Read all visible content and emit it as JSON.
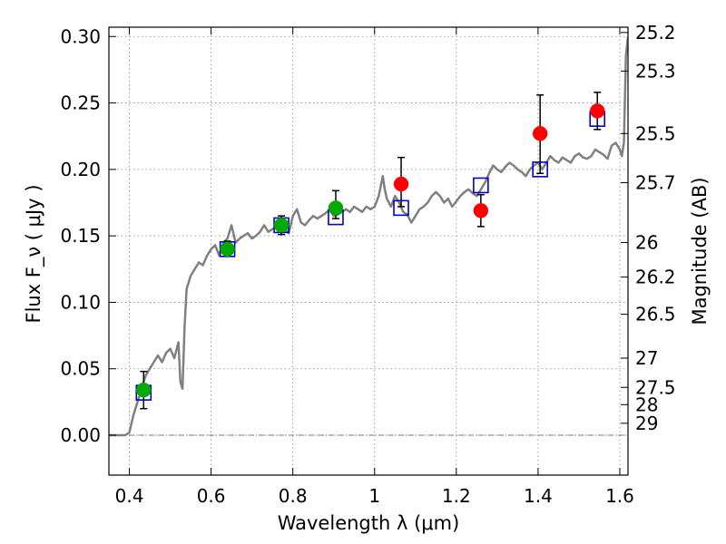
{
  "chart_data": {
    "type": "scatter",
    "xlabel": "Wavelength  λ (μm)",
    "ylabel": "Flux  F_ν  ( μJy )",
    "ylabel_right": "Magnitude (AB)",
    "xlim": [
      0.35,
      1.62
    ],
    "ylim": [
      -0.03,
      0.307
    ],
    "x_ticks": [
      0.4,
      0.6,
      0.8,
      1.0,
      1.2,
      1.4,
      1.6
    ],
    "x_tick_labels": [
      "0.4",
      "0.6",
      "0.8",
      "1",
      "1.2",
      "1.4",
      "1.6"
    ],
    "y_ticks": [
      0.0,
      0.05,
      0.1,
      0.15,
      0.2,
      0.25,
      0.3
    ],
    "y_tick_labels": [
      "0.00",
      "0.05",
      "0.10",
      "0.15",
      "0.20",
      "0.25",
      "0.30"
    ],
    "right_axis_ticks": [
      {
        "flux": 0.303,
        "label": "25.2"
      },
      {
        "flux": 0.274,
        "label": "25.3"
      },
      {
        "flux": 0.227,
        "label": "25.5"
      },
      {
        "flux": 0.19,
        "label": "25.7"
      },
      {
        "flux": 0.145,
        "label": "26"
      },
      {
        "flux": 0.119,
        "label": "26.2"
      },
      {
        "flux": 0.091,
        "label": "26.5"
      },
      {
        "flux": 0.058,
        "label": "27"
      },
      {
        "flux": 0.036,
        "label": "27.5"
      },
      {
        "flux": 0.023,
        "label": "28"
      },
      {
        "flux": 0.009,
        "label": "29"
      }
    ],
    "grid": true,
    "zero_line": true,
    "colors": {
      "model": "#808080",
      "green": "#00aa00",
      "red": "#ff0000",
      "square": "#0000cc",
      "errorbar": "#000000",
      "grid": "#888888"
    },
    "series": [
      {
        "style": "line",
        "color": "#808080",
        "x": [
          0.35,
          0.36,
          0.38,
          0.39,
          0.4,
          0.41,
          0.42,
          0.43,
          0.44,
          0.45,
          0.46,
          0.47,
          0.48,
          0.49,
          0.5,
          0.51,
          0.52,
          0.525,
          0.53,
          0.535,
          0.54,
          0.55,
          0.56,
          0.57,
          0.58,
          0.59,
          0.6,
          0.61,
          0.62,
          0.63,
          0.64,
          0.65,
          0.66,
          0.67,
          0.68,
          0.69,
          0.7,
          0.71,
          0.72,
          0.73,
          0.74,
          0.75,
          0.76,
          0.77,
          0.78,
          0.79,
          0.8,
          0.81,
          0.82,
          0.83,
          0.84,
          0.85,
          0.86,
          0.87,
          0.88,
          0.89,
          0.9,
          0.91,
          0.92,
          0.93,
          0.94,
          0.95,
          0.96,
          0.97,
          0.98,
          0.99,
          1.0,
          1.01,
          1.02,
          1.025,
          1.03,
          1.04,
          1.05,
          1.06,
          1.07,
          1.08,
          1.09,
          1.1,
          1.11,
          1.12,
          1.13,
          1.14,
          1.15,
          1.16,
          1.17,
          1.18,
          1.19,
          1.2,
          1.21,
          1.22,
          1.23,
          1.24,
          1.25,
          1.26,
          1.27,
          1.28,
          1.29,
          1.3,
          1.31,
          1.32,
          1.33,
          1.34,
          1.35,
          1.36,
          1.37,
          1.38,
          1.39,
          1.4,
          1.41,
          1.42,
          1.43,
          1.44,
          1.45,
          1.46,
          1.47,
          1.48,
          1.49,
          1.5,
          1.51,
          1.52,
          1.53,
          1.54,
          1.55,
          1.56,
          1.57,
          1.58,
          1.59,
          1.6,
          1.605,
          1.61,
          1.615,
          1.62
        ],
        "y": [
          0.0,
          0.0,
          0.0,
          0.0,
          0.002,
          0.015,
          0.025,
          0.035,
          0.045,
          0.05,
          0.055,
          0.06,
          0.055,
          0.062,
          0.065,
          0.058,
          0.07,
          0.04,
          0.035,
          0.08,
          0.11,
          0.12,
          0.125,
          0.13,
          0.128,
          0.135,
          0.14,
          0.143,
          0.135,
          0.145,
          0.148,
          0.158,
          0.145,
          0.148,
          0.15,
          0.152,
          0.148,
          0.15,
          0.153,
          0.158,
          0.153,
          0.155,
          0.157,
          0.16,
          0.155,
          0.152,
          0.165,
          0.17,
          0.16,
          0.158,
          0.162,
          0.165,
          0.163,
          0.165,
          0.167,
          0.17,
          0.165,
          0.166,
          0.168,
          0.17,
          0.168,
          0.172,
          0.17,
          0.168,
          0.172,
          0.17,
          0.172,
          0.18,
          0.195,
          0.185,
          0.178,
          0.172,
          0.18,
          0.175,
          0.168,
          0.166,
          0.16,
          0.165,
          0.17,
          0.172,
          0.175,
          0.18,
          0.183,
          0.18,
          0.175,
          0.178,
          0.172,
          0.176,
          0.18,
          0.183,
          0.185,
          0.182,
          0.18,
          0.185,
          0.19,
          0.197,
          0.203,
          0.2,
          0.198,
          0.202,
          0.205,
          0.203,
          0.2,
          0.198,
          0.195,
          0.2,
          0.203,
          0.205,
          0.2,
          0.205,
          0.21,
          0.207,
          0.205,
          0.209,
          0.207,
          0.205,
          0.21,
          0.212,
          0.209,
          0.208,
          0.21,
          0.215,
          0.213,
          0.211,
          0.208,
          0.218,
          0.22,
          0.215,
          0.21,
          0.22,
          0.285,
          0.3
        ]
      },
      {
        "style": "squares",
        "color": "#0000cc",
        "x": [
          0.435,
          0.64,
          0.772,
          0.905,
          1.065,
          1.26,
          1.405,
          1.545
        ],
        "y": [
          0.032,
          0.14,
          0.158,
          0.164,
          0.171,
          0.188,
          0.2,
          0.238
        ]
      },
      {
        "style": "points",
        "color": "#00aa00",
        "x": [
          0.435,
          0.64,
          0.772,
          0.905
        ],
        "y": [
          0.034,
          0.14,
          0.158,
          0.171
        ],
        "yerr_low": [
          0.014,
          0.005,
          0.007,
          0.008
        ],
        "yerr_high": [
          0.014,
          0.006,
          0.007,
          0.013
        ]
      },
      {
        "style": "points",
        "color": "#ff0000",
        "x": [
          1.065,
          1.26,
          1.405,
          1.545
        ],
        "y": [
          0.189,
          0.169,
          0.227,
          0.244
        ],
        "yerr_low": [
          0.017,
          0.012,
          0.03,
          0.014
        ],
        "yerr_high": [
          0.02,
          0.012,
          0.029,
          0.014
        ]
      }
    ]
  }
}
